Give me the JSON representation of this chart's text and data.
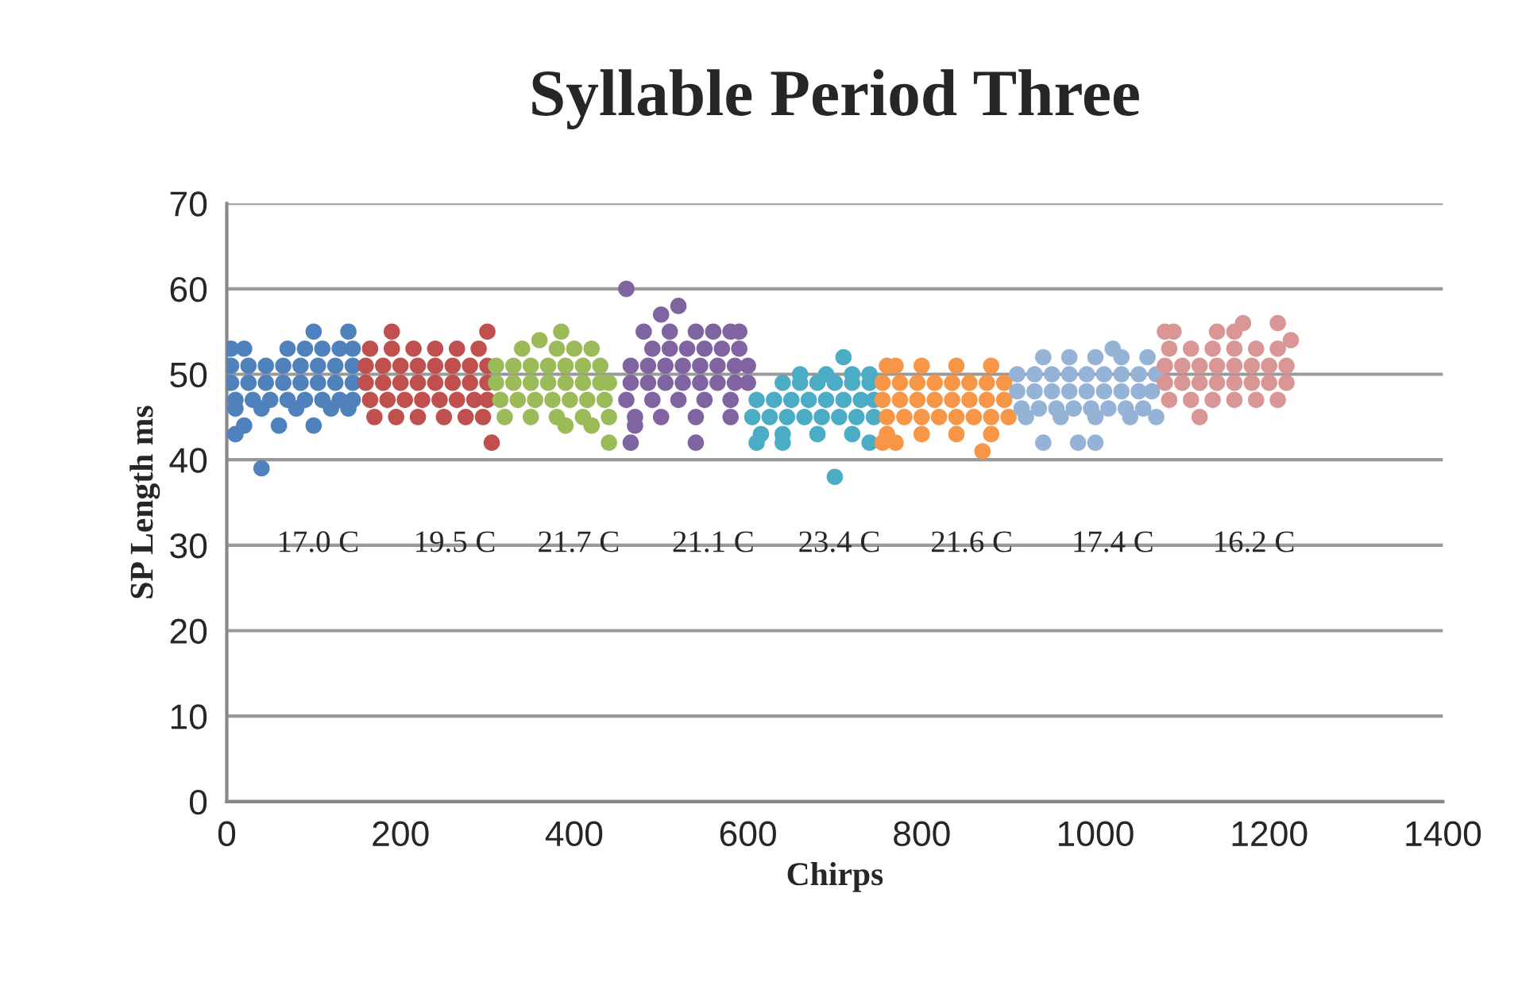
{
  "chart_data": {
    "type": "scatter",
    "title": "Syllable Period Three",
    "xlabel": "Chirps",
    "ylabel": "SP Length ms",
    "xlim": [
      0,
      1400
    ],
    "xticks": [
      0,
      200,
      400,
      600,
      800,
      1000,
      1200,
      1400
    ],
    "ylim": [
      0,
      70
    ],
    "yticks": [
      0,
      10,
      20,
      30,
      40,
      50,
      60,
      70
    ],
    "grid": "y",
    "legend": false,
    "marker": "circle",
    "series": [
      {
        "color": "#4f81bd",
        "x": [
          5,
          20,
          70,
          90,
          110,
          130,
          145,
          5,
          25,
          45,
          65,
          85,
          105,
          125,
          145,
          5,
          25,
          45,
          65,
          85,
          105,
          125,
          145,
          10,
          30,
          50,
          70,
          90,
          110,
          130,
          145,
          10,
          40,
          80,
          120,
          140,
          100,
          140,
          10,
          20,
          60,
          100,
          40
        ],
        "values": [
          53,
          53,
          53,
          53,
          53,
          53,
          53,
          51,
          51,
          51,
          51,
          51,
          51,
          51,
          51,
          49,
          49,
          49,
          49,
          49,
          49,
          49,
          49,
          47,
          47,
          47,
          47,
          47,
          47,
          47,
          47,
          46,
          46,
          46,
          46,
          46,
          55,
          55,
          43,
          44,
          44,
          44,
          39
        ]
      },
      {
        "color": "#c0504d",
        "x": [
          165,
          190,
          215,
          240,
          265,
          290,
          160,
          180,
          200,
          220,
          240,
          260,
          280,
          300,
          160,
          180,
          200,
          220,
          240,
          260,
          280,
          300,
          165,
          185,
          205,
          225,
          245,
          265,
          285,
          300,
          170,
          195,
          220,
          250,
          275,
          295,
          190,
          300,
          305
        ],
        "values": [
          53,
          53,
          53,
          53,
          53,
          53,
          51,
          51,
          51,
          51,
          51,
          51,
          51,
          51,
          49,
          49,
          49,
          49,
          49,
          49,
          49,
          49,
          47,
          47,
          47,
          47,
          47,
          47,
          47,
          47,
          45,
          45,
          45,
          45,
          45,
          45,
          55,
          55,
          42
        ]
      },
      {
        "color": "#9bbb59",
        "x": [
          340,
          380,
          400,
          420,
          310,
          330,
          350,
          370,
          390,
          410,
          430,
          310,
          330,
          350,
          370,
          390,
          410,
          430,
          440,
          315,
          335,
          355,
          375,
          395,
          415,
          435,
          320,
          350,
          380,
          410,
          440,
          390,
          420,
          385,
          440,
          360
        ],
        "values": [
          53,
          53,
          53,
          53,
          51,
          51,
          51,
          51,
          51,
          51,
          51,
          49,
          49,
          49,
          49,
          49,
          49,
          49,
          49,
          47,
          47,
          47,
          47,
          47,
          47,
          47,
          45,
          45,
          45,
          45,
          45,
          44,
          44,
          55,
          42,
          54
        ]
      },
      {
        "color": "#8064a2",
        "x": [
          480,
          510,
          540,
          560,
          580,
          590,
          490,
          510,
          530,
          550,
          570,
          590,
          465,
          485,
          505,
          525,
          545,
          565,
          585,
          600,
          465,
          485,
          505,
          525,
          545,
          565,
          585,
          460,
          490,
          520,
          550,
          580,
          470,
          500,
          540,
          580,
          460,
          520,
          500,
          465,
          470,
          540,
          600
        ],
        "values": [
          55,
          55,
          55,
          55,
          55,
          55,
          53,
          53,
          53,
          53,
          53,
          53,
          51,
          51,
          51,
          51,
          51,
          51,
          51,
          51,
          49,
          49,
          49,
          49,
          49,
          49,
          49,
          47,
          47,
          47,
          47,
          47,
          45,
          45,
          45,
          45,
          60,
          58,
          57,
          42,
          44,
          42,
          49
        ]
      },
      {
        "color": "#4bacc6",
        "x": [
          660,
          690,
          720,
          740,
          640,
          660,
          680,
          700,
          720,
          740,
          610,
          630,
          650,
          670,
          690,
          710,
          730,
          745,
          605,
          625,
          645,
          665,
          685,
          705,
          725,
          745,
          615,
          640,
          680,
          720,
          610,
          640,
          740,
          700,
          710
        ],
        "values": [
          50,
          50,
          50,
          50,
          49,
          49,
          49,
          49,
          49,
          49,
          47,
          47,
          47,
          47,
          47,
          47,
          47,
          47,
          45,
          45,
          45,
          45,
          45,
          45,
          45,
          45,
          43,
          43,
          43,
          43,
          42,
          42,
          42,
          38,
          52
        ]
      },
      {
        "color": "#f79646",
        "x": [
          760,
          770,
          800,
          840,
          880,
          755,
          775,
          795,
          815,
          835,
          855,
          875,
          895,
          755,
          775,
          795,
          815,
          835,
          855,
          875,
          895,
          760,
          780,
          800,
          820,
          840,
          860,
          880,
          900,
          760,
          800,
          840,
          880,
          755,
          770,
          870
        ],
        "values": [
          51,
          51,
          51,
          51,
          51,
          49,
          49,
          49,
          49,
          49,
          49,
          49,
          49,
          47,
          47,
          47,
          47,
          47,
          47,
          47,
          47,
          45,
          45,
          45,
          45,
          45,
          45,
          45,
          45,
          43,
          43,
          43,
          43,
          42,
          42,
          41
        ]
      },
      {
        "color": "#95b3d7",
        "x": [
          940,
          970,
          1000,
          1030,
          1060,
          910,
          930,
          950,
          970,
          990,
          1010,
          1030,
          1050,
          1070,
          910,
          930,
          950,
          970,
          990,
          1010,
          1030,
          1050,
          1065,
          915,
          935,
          955,
          975,
          995,
          1015,
          1035,
          1055,
          920,
          960,
          1000,
          1040,
          1070,
          940,
          980,
          1000,
          1020
        ],
        "values": [
          52,
          52,
          52,
          52,
          52,
          50,
          50,
          50,
          50,
          50,
          50,
          50,
          50,
          50,
          48,
          48,
          48,
          48,
          48,
          48,
          48,
          48,
          48,
          46,
          46,
          46,
          46,
          46,
          46,
          46,
          46,
          45,
          45,
          45,
          45,
          45,
          42,
          42,
          42,
          53
        ]
      },
      {
        "color": "#d99694",
        "x": [
          1080,
          1090,
          1140,
          1160,
          1085,
          1110,
          1135,
          1160,
          1185,
          1210,
          1080,
          1100,
          1120,
          1140,
          1160,
          1180,
          1200,
          1220,
          1080,
          1100,
          1120,
          1140,
          1160,
          1180,
          1200,
          1220,
          1085,
          1110,
          1135,
          1160,
          1185,
          1210,
          1170,
          1210,
          1120,
          1225
        ],
        "values": [
          55,
          55,
          55,
          55,
          53,
          53,
          53,
          53,
          53,
          53,
          51,
          51,
          51,
          51,
          51,
          51,
          51,
          51,
          49,
          49,
          49,
          49,
          49,
          49,
          49,
          49,
          47,
          47,
          47,
          47,
          47,
          47,
          56,
          56,
          45,
          54
        ]
      }
    ],
    "annotations": [
      "17.0 C",
      "19.5 C",
      "21.7 C",
      "21.1 C",
      "23.4 C",
      "21.6 C",
      "17.4 C",
      "16.2 C"
    ]
  }
}
